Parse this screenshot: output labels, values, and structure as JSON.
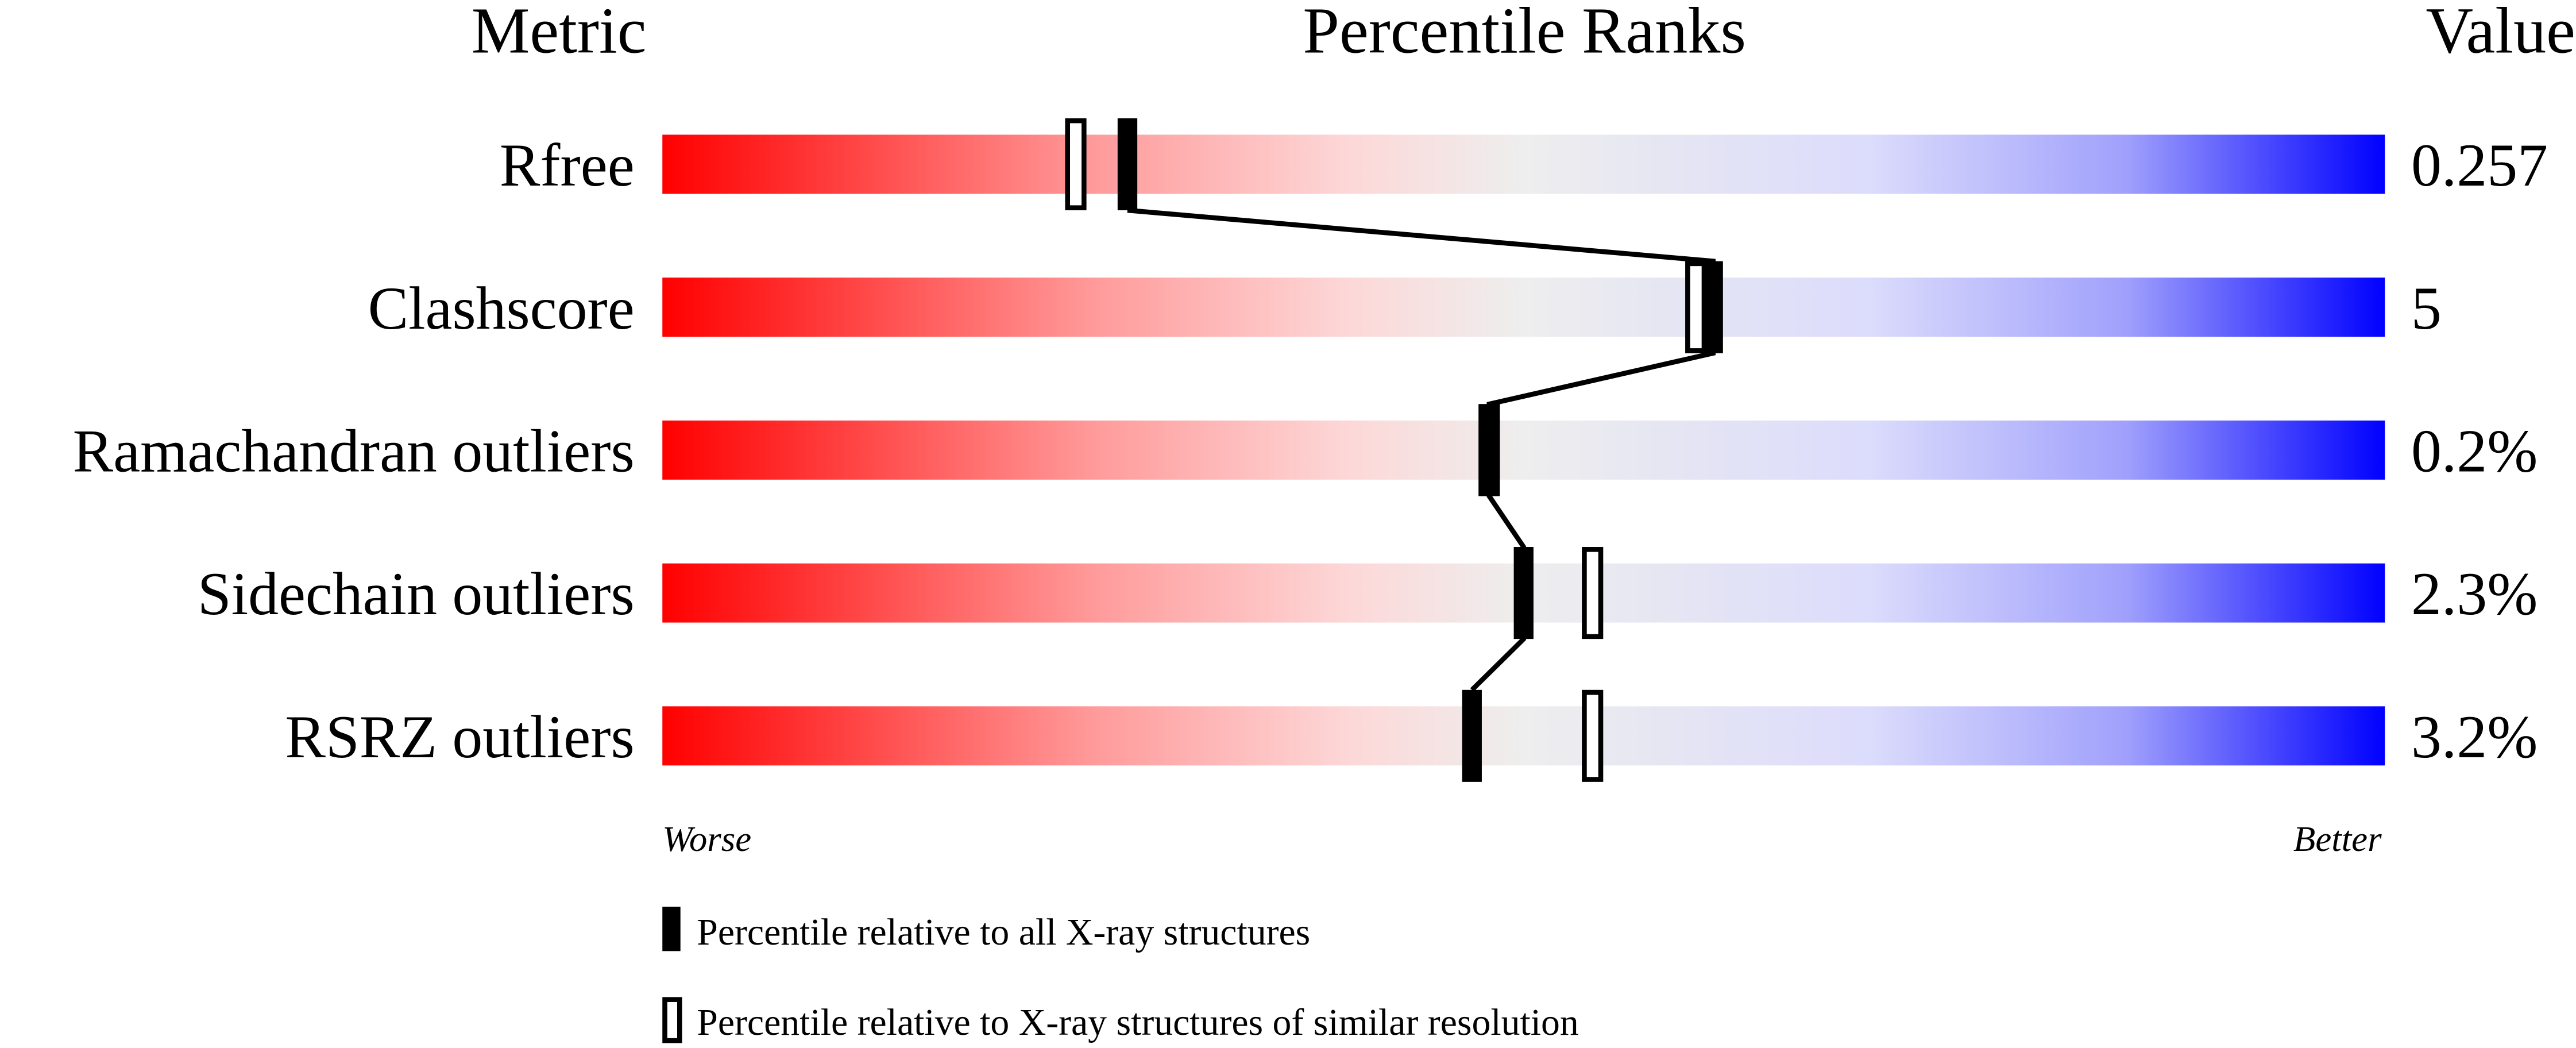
{
  "chart_data": {
    "type": "percentile-slider",
    "headers": {
      "metric": "Metric",
      "ranks": "Percentile Ranks",
      "value": "Value"
    },
    "xlim": [
      0,
      100
    ],
    "axis_labels": {
      "left": "Worse",
      "right": "Better"
    },
    "metrics": [
      {
        "name": "Rfree",
        "value": "0.257",
        "percentile_all": 27,
        "percentile_similar": 24
      },
      {
        "name": "Clashscore",
        "value": "5",
        "percentile_all": 61,
        "percentile_similar": 60
      },
      {
        "name": "Ramachandran outliers",
        "value": "0.2%",
        "percentile_all": 48,
        "percentile_similar": 48
      },
      {
        "name": "Sidechain outliers",
        "value": "2.3%",
        "percentile_all": 50,
        "percentile_similar": 54
      },
      {
        "name": "RSRZ outliers",
        "value": "3.2%",
        "percentile_all": 47,
        "percentile_similar": 54
      }
    ],
    "legend": [
      {
        "marker": "filled",
        "label": "Percentile relative to all X-ray structures"
      },
      {
        "marker": "open",
        "label": "Percentile relative to X-ray structures of similar resolution"
      }
    ],
    "colors": {
      "worse": "#ff0000",
      "middle": "#eeeeee",
      "better": "#0000ff"
    }
  }
}
